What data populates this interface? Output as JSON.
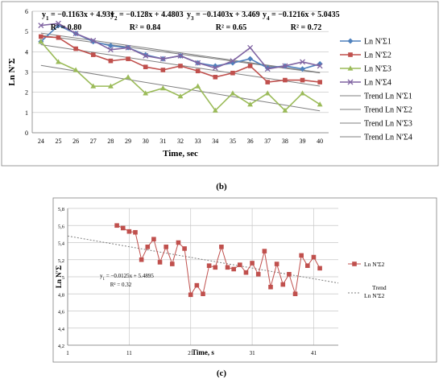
{
  "panel_labels": [
    "(b)",
    "(c)"
  ],
  "chart_data": [
    {
      "type": "line",
      "xlabel": "Time, sec",
      "ylabel": "Ln N′Σ",
      "ylim": [
        0,
        6
      ],
      "yticks": [
        0,
        1,
        2,
        3,
        4,
        5,
        6
      ],
      "grid": true,
      "legend": "right",
      "x": [
        24,
        25,
        26,
        27,
        28,
        29,
        30,
        31,
        32,
        33,
        34,
        35,
        36,
        37,
        38,
        39,
        40
      ],
      "series": [
        {
          "name": "Ln N′Σ1",
          "color": "#4f81bd",
          "marker": "diamond",
          "values": [
            4.5,
            5.3,
            4.9,
            4.5,
            4.3,
            4.2,
            3.85,
            3.65,
            3.8,
            3.45,
            3.3,
            3.45,
            3.65,
            3.2,
            3.3,
            3.15,
            3.4
          ]
        },
        {
          "name": "Ln N′Σ2",
          "color": "#c0504d",
          "marker": "square",
          "values": [
            4.75,
            4.7,
            4.15,
            3.85,
            3.55,
            3.65,
            3.25,
            3.1,
            3.3,
            3.05,
            2.75,
            2.95,
            3.3,
            2.5,
            2.6,
            2.6,
            2.5
          ]
        },
        {
          "name": "Ln N′Σ3",
          "color": "#9bbb59",
          "marker": "triangle",
          "values": [
            4.5,
            3.5,
            3.1,
            2.3,
            2.3,
            2.75,
            1.95,
            2.2,
            1.8,
            2.3,
            1.1,
            1.95,
            1.4,
            1.95,
            1.1,
            1.95,
            1.4
          ]
        },
        {
          "name": "Ln N′Σ4",
          "color": "#8064a2",
          "marker": "x",
          "values": [
            5.3,
            5.4,
            4.9,
            4.55,
            4.1,
            4.2,
            3.8,
            3.65,
            3.8,
            3.45,
            3.2,
            3.55,
            4.2,
            3.15,
            3.3,
            3.5,
            3.3
          ]
        }
      ],
      "trendlines": [
        {
          "name": "Trend Ln N′Σ1",
          "color": "#7f7f7f",
          "slope": -0.1163,
          "intercept": 4.931
        },
        {
          "name": "Trend Ln N′Σ2",
          "color": "#7f7f7f",
          "slope": -0.128,
          "intercept": 4.4803
        },
        {
          "name": "Trend Ln N′Σ3",
          "color": "#7f7f7f",
          "slope": -0.1403,
          "intercept": 3.469
        },
        {
          "name": "Trend Ln N′Σ4",
          "color": "#7f7f7f",
          "slope": -0.1216,
          "intercept": 5.0435
        }
      ],
      "annotations": {
        "equations": [
          {
            "id": "1",
            "text": "= −0.1163x + 4.931"
          },
          {
            "id": "2",
            "text": "= −0.128x + 4.4803"
          },
          {
            "id": "3",
            "text": "= −0.1403x + 3.469"
          },
          {
            "id": "4",
            "text": "= −0.1216x + 5.0435"
          }
        ],
        "r2": [
          "R² = 0.80",
          "R² = 0.84",
          "R² = 0.65",
          "R² = 0.72"
        ]
      }
    },
    {
      "type": "line",
      "xlabel": "Time, s",
      "ylabel": "Ln N′Σ",
      "xlim": [
        1,
        45
      ],
      "xticks": [
        1,
        11,
        21,
        31,
        41
      ],
      "ylim": [
        4.2,
        5.8
      ],
      "yticks": [
        "4,2",
        "4,4",
        "4,6",
        "4,8",
        "5",
        "5,2",
        "5,4",
        "5,6",
        "5,8"
      ],
      "grid": true,
      "legend": "right",
      "series": [
        {
          "name": "Ln N′Σ2",
          "color": "#c0504d",
          "marker": "square",
          "x": [
            9,
            10,
            11,
            12,
            13,
            14,
            15,
            16,
            17,
            18,
            19,
            20,
            21,
            22,
            23,
            24,
            25,
            26,
            27,
            28,
            29,
            30,
            31,
            32,
            33,
            34,
            35,
            36,
            37,
            38,
            39,
            40,
            41,
            42
          ],
          "values": [
            5.6,
            5.57,
            5.53,
            5.52,
            5.2,
            5.35,
            5.44,
            5.17,
            5.35,
            5.15,
            5.4,
            5.33,
            4.79,
            4.9,
            4.8,
            5.13,
            5.11,
            5.35,
            5.11,
            5.09,
            5.14,
            5.05,
            5.16,
            5.03,
            5.3,
            4.88,
            5.15,
            4.91,
            5.03,
            4.8,
            5.25,
            5.13,
            5.23,
            5.1
          ]
        }
      ],
      "trendlines": [
        {
          "name": "Trend\nLn N′Σ2",
          "color": "#7f7f7f",
          "slope": -0.0125,
          "intercept": 5.4895
        }
      ],
      "annotations": {
        "equation": {
          "id": "1",
          "text": "= −0.0125x + 5.4895"
        },
        "r2": "R² = 0.32"
      }
    }
  ]
}
